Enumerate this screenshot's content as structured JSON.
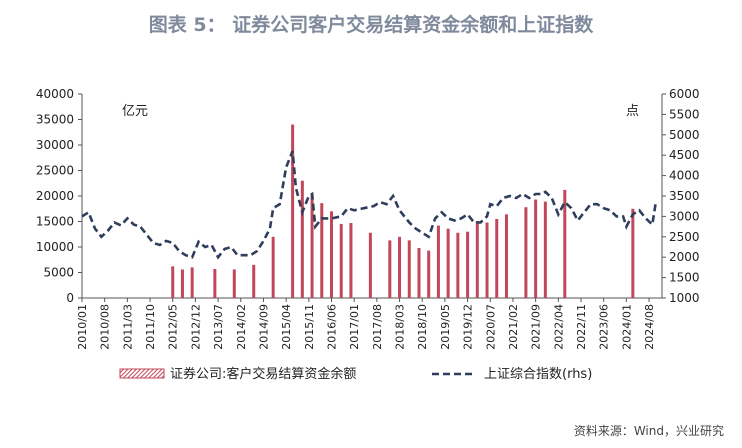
{
  "title": "图表 5：  证券公司客户交易结算资金余额和上证指数",
  "unit_left": "亿元",
  "unit_right": "点",
  "source": "资料来源：Wind，兴业研究",
  "colors": {
    "bar": "#c0485a",
    "line": "#2e3e5c",
    "title": "#7f8a9c"
  },
  "chart_data": {
    "type": "bar",
    "x_range": [
      "2010-01",
      "2024-12"
    ],
    "tick_labels": [
      "2010/01",
      "2010/08",
      "2011/03",
      "2011/10",
      "2012/05",
      "2012/12",
      "2013/07",
      "2014/02",
      "2014/09",
      "2015/04",
      "2015/11",
      "2016/06",
      "2017/01",
      "2017/08",
      "2018/03",
      "2018/10",
      "2019/05",
      "2019/12",
      "2020/07",
      "2021/02",
      "2021/09",
      "2022/04",
      "2022/11",
      "2023/06",
      "2024/01",
      "2024/08"
    ],
    "y_left": {
      "min": 0,
      "max": 40000,
      "ticks": [
        0,
        5000,
        10000,
        15000,
        20000,
        25000,
        30000,
        35000,
        40000
      ]
    },
    "y_right": {
      "min": 1000,
      "max": 6000,
      "ticks": [
        1000,
        1500,
        2000,
        2500,
        3000,
        3500,
        4000,
        4500,
        5000,
        5500,
        6000
      ]
    },
    "series": [
      {
        "name": "证券公司:客户交易结算资金余额",
        "type": "bar",
        "axis": "left",
        "points": [
          [
            "2012-05",
            6200
          ],
          [
            "2012-08",
            5600
          ],
          [
            "2012-11",
            6000
          ],
          [
            "2013-06",
            5700
          ],
          [
            "2013-12",
            5600
          ],
          [
            "2014-06",
            6500
          ],
          [
            "2014-12",
            12000
          ],
          [
            "2015-06",
            34000
          ],
          [
            "2015-09",
            23000
          ],
          [
            "2015-12",
            20500
          ],
          [
            "2016-03",
            18600
          ],
          [
            "2016-06",
            17000
          ],
          [
            "2016-09",
            14500
          ],
          [
            "2016-12",
            14700
          ],
          [
            "2017-06",
            12800
          ],
          [
            "2017-12",
            11300
          ],
          [
            "2018-03",
            12000
          ],
          [
            "2018-06",
            11300
          ],
          [
            "2018-09",
            9800
          ],
          [
            "2018-12",
            9300
          ],
          [
            "2019-03",
            14200
          ],
          [
            "2019-06",
            13600
          ],
          [
            "2019-09",
            12800
          ],
          [
            "2019-12",
            13000
          ],
          [
            "2020-03",
            15100
          ],
          [
            "2020-06",
            14800
          ],
          [
            "2020-09",
            15500
          ],
          [
            "2020-12",
            16400
          ],
          [
            "2021-06",
            17800
          ],
          [
            "2021-09",
            19300
          ],
          [
            "2021-12",
            18900
          ],
          [
            "2022-06",
            21200
          ],
          [
            "2024-03",
            17500
          ]
        ]
      },
      {
        "name": "上证综合指数(rhs)",
        "type": "line",
        "axis": "right",
        "points": [
          [
            "2010-01",
            3000
          ],
          [
            "2010-03",
            3100
          ],
          [
            "2010-05",
            2700
          ],
          [
            "2010-07",
            2500
          ],
          [
            "2010-09",
            2650
          ],
          [
            "2010-11",
            2850
          ],
          [
            "2011-01",
            2780
          ],
          [
            "2011-03",
            2950
          ],
          [
            "2011-05",
            2800
          ],
          [
            "2011-07",
            2750
          ],
          [
            "2011-09",
            2550
          ],
          [
            "2011-11",
            2350
          ],
          [
            "2012-01",
            2300
          ],
          [
            "2012-03",
            2400
          ],
          [
            "2012-05",
            2350
          ],
          [
            "2012-07",
            2150
          ],
          [
            "2012-09",
            2050
          ],
          [
            "2012-11",
            2000
          ],
          [
            "2013-01",
            2380
          ],
          [
            "2013-03",
            2250
          ],
          [
            "2013-05",
            2300
          ],
          [
            "2013-07",
            2000
          ],
          [
            "2013-09",
            2200
          ],
          [
            "2013-11",
            2250
          ],
          [
            "2014-01",
            2050
          ],
          [
            "2014-03",
            2050
          ],
          [
            "2014-05",
            2050
          ],
          [
            "2014-07",
            2150
          ],
          [
            "2014-09",
            2400
          ],
          [
            "2014-11",
            2700
          ],
          [
            "2014-12",
            3200
          ],
          [
            "2015-02",
            3300
          ],
          [
            "2015-04",
            4200
          ],
          [
            "2015-06",
            4600
          ],
          [
            "2015-07",
            3700
          ],
          [
            "2015-09",
            3100
          ],
          [
            "2015-11",
            3500
          ],
          [
            "2015-12",
            3550
          ],
          [
            "2016-01",
            2750
          ],
          [
            "2016-03",
            2950
          ],
          [
            "2016-06",
            2950
          ],
          [
            "2016-09",
            3000
          ],
          [
            "2016-11",
            3200
          ],
          [
            "2017-01",
            3150
          ],
          [
            "2017-04",
            3200
          ],
          [
            "2017-07",
            3250
          ],
          [
            "2017-09",
            3350
          ],
          [
            "2017-11",
            3300
          ],
          [
            "2018-01",
            3500
          ],
          [
            "2018-03",
            3150
          ],
          [
            "2018-06",
            2850
          ],
          [
            "2018-08",
            2700
          ],
          [
            "2018-10",
            2600
          ],
          [
            "2018-12",
            2500
          ],
          [
            "2019-02",
            2950
          ],
          [
            "2019-04",
            3100
          ],
          [
            "2019-06",
            2950
          ],
          [
            "2019-08",
            2900
          ],
          [
            "2019-10",
            2950
          ],
          [
            "2019-12",
            3050
          ],
          [
            "2020-02",
            2850
          ],
          [
            "2020-04",
            2850
          ],
          [
            "2020-06",
            3000
          ],
          [
            "2020-07",
            3300
          ],
          [
            "2020-09",
            3250
          ],
          [
            "2020-11",
            3450
          ],
          [
            "2021-01",
            3500
          ],
          [
            "2021-03",
            3450
          ],
          [
            "2021-05",
            3550
          ],
          [
            "2021-07",
            3450
          ],
          [
            "2021-09",
            3550
          ],
          [
            "2021-11",
            3550
          ],
          [
            "2021-12",
            3600
          ],
          [
            "2022-02",
            3450
          ],
          [
            "2022-04",
            3050
          ],
          [
            "2022-06",
            3350
          ],
          [
            "2022-08",
            3200
          ],
          [
            "2022-10",
            2900
          ],
          [
            "2022-12",
            3100
          ],
          [
            "2023-02",
            3300
          ],
          [
            "2023-04",
            3300
          ],
          [
            "2023-06",
            3200
          ],
          [
            "2023-08",
            3150
          ],
          [
            "2023-10",
            3000
          ],
          [
            "2023-12",
            3000
          ],
          [
            "2024-01",
            2750
          ],
          [
            "2024-03",
            3050
          ],
          [
            "2024-05",
            3150
          ],
          [
            "2024-07",
            2950
          ],
          [
            "2024-09",
            2800
          ],
          [
            "2024-10",
            3300
          ]
        ]
      }
    ],
    "legend_position": "bottom",
    "grid": false
  }
}
